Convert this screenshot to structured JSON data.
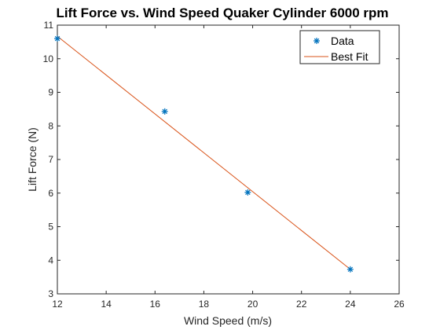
{
  "chart_data": {
    "type": "scatter",
    "title": "Lift Force vs. Wind Speed Quaker Cylinder 6000 rpm",
    "xlabel": "Wind Speed (m/s)",
    "ylabel": "Lift Force (N)",
    "xlim": [
      12,
      26
    ],
    "ylim": [
      3,
      11
    ],
    "xticks": [
      12,
      14,
      16,
      18,
      20,
      22,
      24,
      26
    ],
    "yticks": [
      3,
      4,
      5,
      6,
      7,
      8,
      9,
      10,
      11
    ],
    "grid": false,
    "legend_position": "top-right",
    "series": [
      {
        "name": "Data",
        "kind": "scatter",
        "marker": "asterisk",
        "color": "#0072BD",
        "x": [
          12.0,
          16.4,
          19.8,
          24.0
        ],
        "y": [
          10.6,
          8.43,
          6.02,
          3.73
        ]
      },
      {
        "name": "Best Fit",
        "kind": "line",
        "color": "#D95319",
        "x": [
          12.0,
          24.0
        ],
        "y": [
          10.67,
          3.73
        ]
      }
    ]
  }
}
